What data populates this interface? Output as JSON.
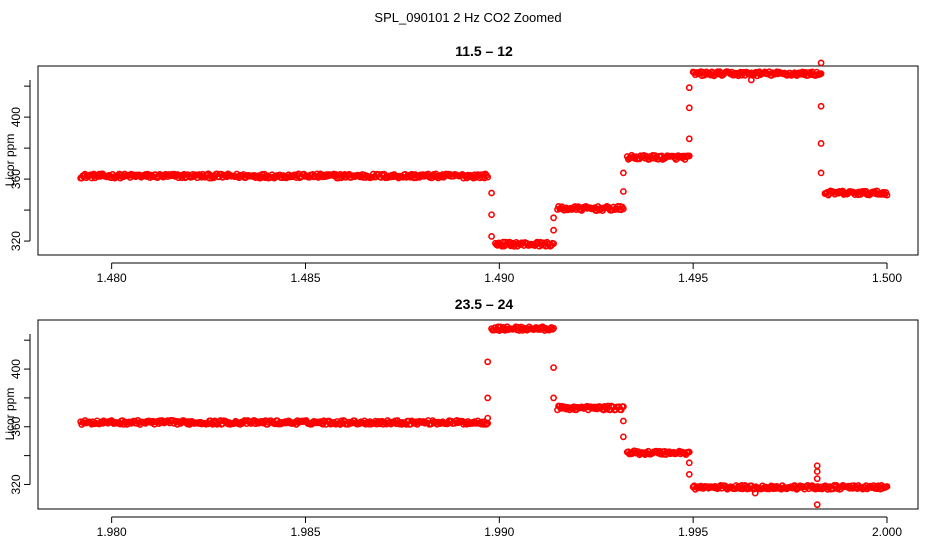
{
  "figure_title": "SPL_090101  2 Hz CO2 Zoomed",
  "colors": {
    "points": "#ff0000",
    "axes": "#000000",
    "background": "#ffffff"
  },
  "chart_data": [
    {
      "type": "scatter",
      "title": "11.5 – 12",
      "xlabel": "",
      "ylabel": "Licor ppm",
      "xlim": [
        1.4781,
        1.5008
      ],
      "ylim": [
        311,
        433
      ],
      "xticks": [
        1.48,
        1.485,
        1.49,
        1.495,
        1.5
      ],
      "xtick_labels": [
        "1.480",
        "1.485",
        "1.490",
        "1.495",
        "1.500"
      ],
      "yticks": [
        320,
        360,
        400
      ],
      "ytick_labels": [
        "320",
        "360",
        "400"
      ],
      "marker": "open-circle",
      "grid": false,
      "series": [
        {
          "segments": [
            {
              "x_start": 1.4792,
              "x_end": 1.4897,
              "y": 362
            },
            {
              "x_start": 1.4899,
              "x_end": 1.4914,
              "y": 318
            },
            {
              "x_start": 1.4915,
              "x_end": 1.4932,
              "y": 341
            },
            {
              "x_start": 1.4933,
              "x_end": 1.4949,
              "y": 374
            },
            {
              "x_start": 1.495,
              "x_end": 1.4983,
              "y": 428
            },
            {
              "x_start": 1.4984,
              "x_end": 1.5,
              "y": 351
            }
          ],
          "transitions": [
            {
              "x": 1.4898,
              "y": [
                351,
                337,
                323
              ]
            },
            {
              "x": 1.4914,
              "y": [
                327,
                335
              ]
            },
            {
              "x": 1.4932,
              "y": [
                352,
                364
              ]
            },
            {
              "x": 1.4949,
              "y": [
                386,
                406,
                419
              ]
            },
            {
              "x": 1.4983,
              "y": [
                435,
                407,
                383,
                364
              ]
            }
          ],
          "outliers": [
            {
              "x": 1.4965,
              "y": 424
            }
          ]
        }
      ]
    },
    {
      "type": "scatter",
      "title": "23.5 – 24",
      "xlabel": "",
      "ylabel": "Licor ppm",
      "xlim": [
        1.9781,
        2.0008
      ],
      "ylim": [
        303,
        434
      ],
      "xticks": [
        1.98,
        1.985,
        1.99,
        1.995,
        2.0
      ],
      "xtick_labels": [
        "1.980",
        "1.985",
        "1.990",
        "1.995",
        "2.000"
      ],
      "yticks": [
        320,
        360,
        400
      ],
      "ytick_labels": [
        "320",
        "360",
        "400"
      ],
      "marker": "open-circle",
      "grid": false,
      "series": [
        {
          "segments": [
            {
              "x_start": 1.9792,
              "x_end": 1.9897,
              "y": 363
            },
            {
              "x_start": 1.9898,
              "x_end": 1.9914,
              "y": 428
            },
            {
              "x_start": 1.9915,
              "x_end": 1.9932,
              "y": 373
            },
            {
              "x_start": 1.9933,
              "x_end": 1.9949,
              "y": 342
            },
            {
              "x_start": 1.995,
              "x_end": 2.0,
              "y": 318
            }
          ],
          "transitions": [
            {
              "x": 1.9897,
              "y": [
                366,
                380,
                405
              ]
            },
            {
              "x": 1.9914,
              "y": [
                401,
                380
              ]
            },
            {
              "x": 1.9932,
              "y": [
                364,
                353
              ]
            },
            {
              "x": 1.9949,
              "y": [
                335,
                327
              ]
            }
          ],
          "outliers": [
            {
              "x": 1.9982,
              "y": 333
            },
            {
              "x": 1.9982,
              "y": 329
            },
            {
              "x": 1.9982,
              "y": 324
            },
            {
              "x": 1.9982,
              "y": 306
            },
            {
              "x": 1.9966,
              "y": 314
            }
          ]
        }
      ]
    }
  ]
}
